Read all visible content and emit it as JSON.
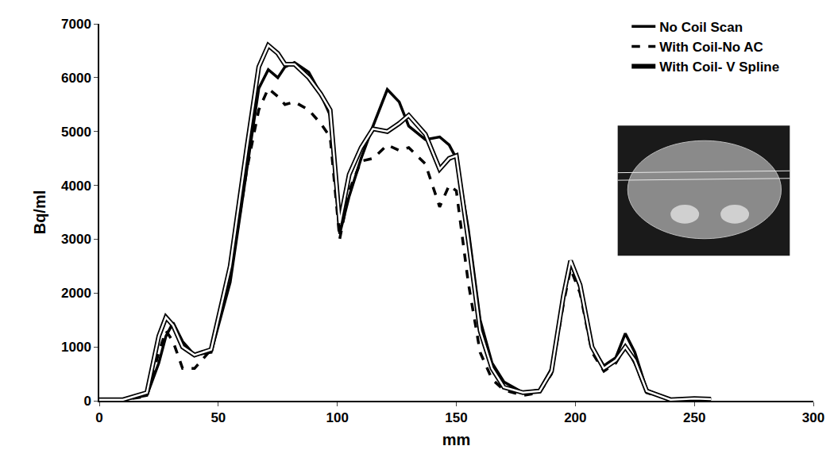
{
  "chart_data": {
    "type": "line",
    "x_label": "mm",
    "y_label": "Bq/ml",
    "x": [
      0,
      10,
      20,
      25,
      28,
      31,
      35,
      40,
      47,
      55,
      62,
      67,
      71,
      75,
      78,
      82,
      88,
      93,
      97,
      101,
      105,
      110,
      115,
      121,
      126,
      130,
      137,
      143,
      147,
      150,
      155,
      160,
      165,
      170,
      178,
      185,
      190,
      195,
      198,
      202,
      207,
      212,
      217,
      221,
      225,
      230,
      240,
      250,
      257
    ],
    "series": [
      {
        "name": "No Coil Scan",
        "color": "#000000",
        "line_style": "solid",
        "values": [
          20,
          20,
          100,
          700,
          1200,
          1450,
          1100,
          850,
          900,
          2200,
          4300,
          5800,
          6150,
          6000,
          6200,
          6280,
          6100,
          5700,
          5300,
          3100,
          3800,
          4500,
          5100,
          5780,
          5550,
          5100,
          4850,
          4900,
          4750,
          4500,
          3200,
          1500,
          700,
          350,
          150,
          200,
          600,
          1900,
          2550,
          2100,
          1000,
          650,
          800,
          1250,
          900,
          200,
          20,
          40,
          30
        ]
      },
      {
        "name": "With Coil-No AC",
        "color": "#000000",
        "line_style": "dashed",
        "values": [
          20,
          20,
          80,
          900,
          1300,
          1100,
          600,
          600,
          950,
          2300,
          4300,
          5400,
          5800,
          5650,
          5500,
          5550,
          5400,
          5150,
          4900,
          3000,
          3900,
          4450,
          4500,
          4750,
          4650,
          4700,
          4400,
          3600,
          4000,
          3900,
          2200,
          900,
          400,
          200,
          100,
          150,
          500,
          1800,
          2450,
          2000,
          900,
          550,
          700,
          1000,
          700,
          150,
          20,
          40,
          30
        ]
      },
      {
        "name": "With Coil- V Spline",
        "color": "#000000",
        "line_style": "double",
        "values": [
          20,
          20,
          150,
          1200,
          1550,
          1400,
          1000,
          850,
          950,
          2500,
          4700,
          6200,
          6600,
          6450,
          6250,
          6250,
          6000,
          5700,
          5400,
          3300,
          4200,
          4700,
          5050,
          5000,
          5150,
          5300,
          4950,
          4300,
          4500,
          4550,
          3000,
          1300,
          600,
          250,
          150,
          180,
          550,
          1950,
          2600,
          2150,
          1000,
          600,
          750,
          1000,
          750,
          180,
          20,
          40,
          30
        ]
      }
    ],
    "xlim": [
      0,
      300
    ],
    "xticks": [
      0,
      50,
      100,
      150,
      200,
      250,
      300
    ],
    "ylim": [
      0,
      7000
    ],
    "yticks": [
      0,
      1000,
      2000,
      3000,
      4000,
      5000,
      6000,
      7000
    ],
    "grid": false,
    "legend": "upper right"
  }
}
